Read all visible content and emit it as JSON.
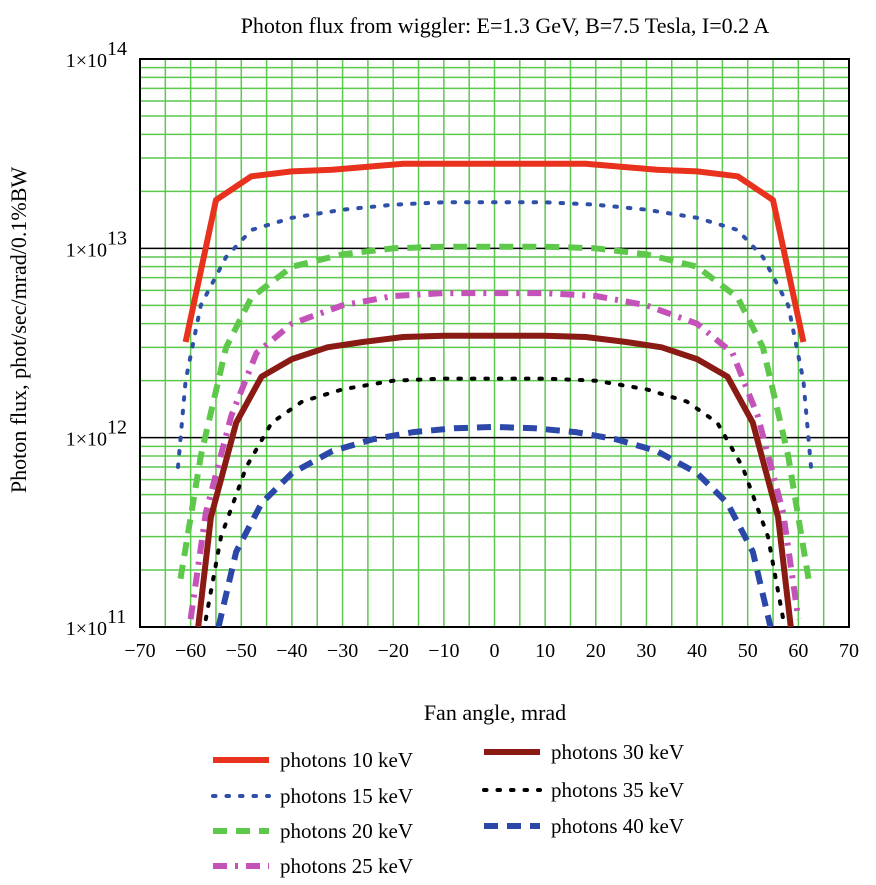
{
  "chart_data": {
    "type": "line",
    "title": "Photon flux from wiggler: E=1.3 GeV, B=7.5 Tesla, I=0.2 A",
    "xlabel": "Fan angle, mrad",
    "ylabel": "Photon flux, phot/sec/mrad/0.1%BW",
    "xlim": [
      -70,
      70
    ],
    "ylim": [
      100000000000.0,
      100000000000000.0
    ],
    "yscale": "log",
    "grid": true,
    "x_ticks": [
      -70,
      -60,
      -50,
      -40,
      -30,
      -20,
      -10,
      0,
      10,
      20,
      30,
      40,
      50,
      60,
      70
    ],
    "x_tick_labels": [
      "−70",
      "−60",
      "−50",
      "−40",
      "−30",
      "−20",
      "−10",
      "0",
      "10",
      "20",
      "30",
      "40",
      "50",
      "60",
      "70"
    ],
    "y_ticks": [
      {
        "value": 100000000000.0,
        "mant": "1×10",
        "exp": "11"
      },
      {
        "value": 1000000000000.0,
        "mant": "1×10",
        "exp": "12"
      },
      {
        "value": 10000000000000.0,
        "mant": "1×10",
        "exp": "13"
      },
      {
        "value": 100000000000000.0,
        "mant": "1×10",
        "exp": "14"
      }
    ],
    "legend_placement": "bottom",
    "series": [
      {
        "name": "photons 10 keV",
        "color": "#e8321e",
        "style": "solid",
        "width": 6,
        "x": [
          -61,
          -55,
          -48,
          -40,
          -32,
          -25,
          -18,
          -10,
          0,
          10,
          18,
          25,
          32,
          40,
          48,
          55,
          61
        ],
        "y": [
          3200000000000.0,
          18000000000000.0,
          24000000000000.0,
          25500000000000.0,
          26000000000000.0,
          27000000000000.0,
          28000000000000.0,
          28000000000000.0,
          28000000000000.0,
          28000000000000.0,
          28000000000000.0,
          27000000000000.0,
          26000000000000.0,
          25500000000000.0,
          24000000000000.0,
          18000000000000.0,
          3200000000000.0
        ]
      },
      {
        "name": "photons 15 keV",
        "color": "#2f4fa8",
        "style": "dotted",
        "width": 4,
        "x": [
          -62.5,
          -61,
          -58,
          -53,
          -48,
          -40,
          -30,
          -20,
          -10,
          0,
          10,
          20,
          30,
          40,
          48,
          53,
          58,
          61,
          62.5
        ],
        "y": [
          700000000000.0,
          2000000000000.0,
          5000000000000.0,
          9000000000000.0,
          12500000000000.0,
          14500000000000.0,
          16000000000000.0,
          17000000000000.0,
          17500000000000.0,
          17500000000000.0,
          17500000000000.0,
          17000000000000.0,
          16000000000000.0,
          14500000000000.0,
          12500000000000.0,
          9000000000000.0,
          5000000000000.0,
          2000000000000.0,
          700000000000.0
        ]
      },
      {
        "name": "photons 20 keV",
        "color": "#5dc84a",
        "style": "dashed",
        "width": 6,
        "x": [
          -62,
          -58,
          -53,
          -48,
          -40,
          -30,
          -20,
          -10,
          0,
          10,
          20,
          30,
          40,
          48,
          53,
          58,
          62
        ],
        "y": [
          180000000000.0,
          800000000000.0,
          3000000000000.0,
          5500000000000.0,
          8000000000000.0,
          9300000000000.0,
          10000000000000.0,
          10200000000000.0,
          10200000000000.0,
          10200000000000.0,
          10000000000000.0,
          9300000000000.0,
          8000000000000.0,
          5500000000000.0,
          3000000000000.0,
          800000000000.0,
          180000000000.0
        ]
      },
      {
        "name": "photons 25 keV",
        "color": "#c452b8",
        "style": "dashdot",
        "width": 6,
        "x": [
          -60,
          -57,
          -52,
          -47,
          -40,
          -30,
          -20,
          -10,
          0,
          10,
          20,
          30,
          40,
          47,
          52,
          57,
          60
        ],
        "y": [
          110000000000.0,
          400000000000.0,
          1300000000000.0,
          2800000000000.0,
          4000000000000.0,
          5000000000000.0,
          5600000000000.0,
          5800000000000.0,
          5800000000000.0,
          5800000000000.0,
          5600000000000.0,
          5000000000000.0,
          4000000000000.0,
          2800000000000.0,
          1300000000000.0,
          400000000000.0,
          110000000000.0
        ]
      },
      {
        "name": "photons 30 keV",
        "color": "#8a1a14",
        "style": "solid",
        "width": 6,
        "x": [
          -58.5,
          -56,
          -51,
          -46,
          -40,
          -33,
          -26,
          -18,
          -10,
          0,
          10,
          18,
          26,
          33,
          40,
          46,
          51,
          56,
          58.5
        ],
        "y": [
          100000000000.0,
          380000000000.0,
          1200000000000.0,
          2100000000000.0,
          2600000000000.0,
          3000000000000.0,
          3200000000000.0,
          3400000000000.0,
          3450000000000.0,
          3450000000000.0,
          3450000000000.0,
          3400000000000.0,
          3200000000000.0,
          3000000000000.0,
          2600000000000.0,
          2100000000000.0,
          1200000000000.0,
          380000000000.0,
          100000000000.0
        ]
      },
      {
        "name": "photons 35 keV",
        "color": "#000000",
        "style": "dotted",
        "width": 4,
        "x": [
          -57,
          -54,
          -49,
          -44,
          -38,
          -30,
          -20,
          -10,
          0,
          10,
          20,
          30,
          38,
          44,
          49,
          54,
          57
        ],
        "y": [
          110000000000.0,
          300000000000.0,
          700000000000.0,
          1200000000000.0,
          1550000000000.0,
          1800000000000.0,
          2000000000000.0,
          2050000000000.0,
          2050000000000.0,
          2050000000000.0,
          2000000000000.0,
          1800000000000.0,
          1550000000000.0,
          1200000000000.0,
          700000000000.0,
          300000000000.0,
          110000000000.0
        ]
      },
      {
        "name": "photons 40 keV",
        "color": "#2b47a8",
        "style": "dashed",
        "width": 6,
        "x": [
          -54.5,
          -51,
          -46,
          -40,
          -32,
          -24,
          -16,
          -8,
          0,
          8,
          16,
          24,
          32,
          40,
          46,
          51,
          54.5
        ],
        "y": [
          100000000000.0,
          250000000000.0,
          450000000000.0,
          650000000000.0,
          850000000000.0,
          980000000000.0,
          1070000000000.0,
          1120000000000.0,
          1140000000000.0,
          1120000000000.0,
          1070000000000.0,
          980000000000.0,
          850000000000.0,
          650000000000.0,
          450000000000.0,
          250000000000.0,
          100000000000.0
        ]
      }
    ]
  }
}
